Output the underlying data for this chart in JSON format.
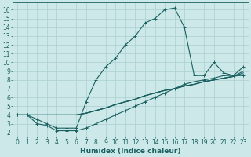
{
  "bg_color": "#cce8e8",
  "line_color": "#1a6060",
  "grid_color": "#aacfcf",
  "xlabel": "Humidex (Indice chaleur)",
  "xlabel_fontsize": 6.5,
  "tick_fontsize": 5.5,
  "xlim": [
    -0.5,
    23.5
  ],
  "ylim": [
    1.5,
    16.8
  ],
  "yticks": [
    2,
    3,
    4,
    5,
    6,
    7,
    8,
    9,
    10,
    11,
    12,
    13,
    14,
    15,
    16
  ],
  "xticks": [
    0,
    1,
    2,
    3,
    4,
    5,
    6,
    7,
    8,
    9,
    10,
    11,
    12,
    13,
    14,
    15,
    16,
    17,
    18,
    19,
    20,
    21,
    22,
    23
  ],
  "curve_main_x": [
    0,
    1,
    2,
    3,
    4,
    5,
    6,
    7,
    8,
    9,
    10,
    11,
    12,
    13,
    14,
    15,
    16,
    17,
    18,
    19,
    20,
    21,
    22,
    23
  ],
  "curve_main_y": [
    4.0,
    4.0,
    3.5,
    3.0,
    2.5,
    2.5,
    2.5,
    5.5,
    8.0,
    9.5,
    10.5,
    12.0,
    13.0,
    14.5,
    15.0,
    16.0,
    16.2,
    14.0,
    8.5,
    8.5,
    10.0,
    8.8,
    8.5,
    9.5
  ],
  "curve_low_x": [
    0,
    1,
    2,
    3,
    4,
    5,
    6,
    7,
    8,
    9,
    10,
    11,
    12,
    13,
    14,
    15,
    16,
    17,
    18,
    19,
    20,
    21,
    22,
    23
  ],
  "curve_low_y": [
    4.0,
    4.0,
    3.0,
    2.8,
    2.2,
    2.2,
    2.2,
    2.5,
    3.0,
    3.5,
    4.0,
    4.5,
    5.0,
    5.5,
    6.0,
    6.5,
    7.0,
    7.5,
    7.8,
    8.0,
    8.2,
    8.5,
    8.5,
    8.5
  ],
  "curve_line1_x": [
    0,
    1,
    2,
    3,
    4,
    5,
    6,
    7,
    8,
    9,
    10,
    11,
    12,
    13,
    14,
    15,
    16,
    17,
    18,
    19,
    20,
    21,
    22,
    23
  ],
  "curve_line1_y": [
    4.0,
    4.0,
    4.0,
    4.0,
    4.0,
    4.0,
    4.0,
    4.2,
    4.5,
    4.8,
    5.2,
    5.5,
    5.8,
    6.2,
    6.5,
    6.8,
    7.0,
    7.3,
    7.5,
    7.8,
    8.0,
    8.2,
    8.4,
    8.6
  ],
  "curve_line2_x": [
    0,
    1,
    2,
    3,
    4,
    5,
    6,
    7,
    8,
    9,
    10,
    11,
    12,
    13,
    14,
    15,
    16,
    17,
    18,
    19,
    20,
    21,
    22,
    23
  ],
  "curve_line2_y": [
    4.0,
    4.0,
    4.0,
    4.0,
    4.0,
    4.0,
    4.0,
    4.2,
    4.5,
    4.8,
    5.2,
    5.5,
    5.8,
    6.2,
    6.5,
    6.8,
    7.0,
    7.3,
    7.5,
    7.8,
    8.0,
    8.2,
    8.4,
    9.0
  ],
  "curve_line3_x": [
    0,
    1,
    2,
    3,
    4,
    5,
    6,
    7,
    8,
    9,
    10,
    11,
    12,
    13,
    14,
    15,
    16,
    17,
    18,
    19,
    20,
    21,
    22,
    23
  ],
  "curve_line3_y": [
    4.0,
    4.0,
    4.0,
    4.0,
    4.0,
    4.0,
    4.0,
    4.2,
    4.5,
    4.8,
    5.2,
    5.5,
    5.8,
    6.2,
    6.5,
    6.8,
    7.0,
    7.3,
    7.5,
    7.8,
    8.0,
    8.2,
    8.4,
    8.8
  ]
}
